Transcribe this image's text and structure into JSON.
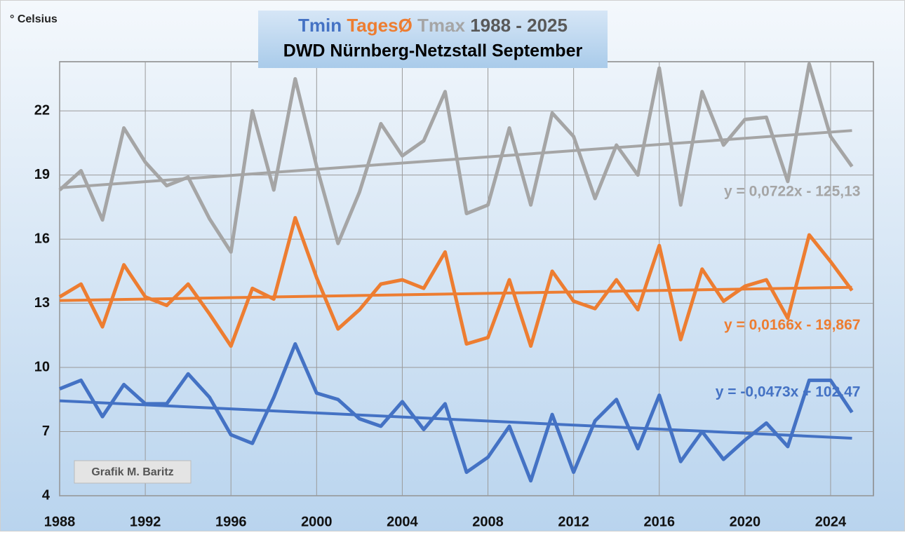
{
  "chart_data": {
    "type": "line",
    "title": "DWD Nürnberg-Netzstall September",
    "title_period": "1988 - 2025",
    "y_axis_label": "° Celsius",
    "annotation": "Grafik M. Baritz",
    "x": [
      1988,
      1989,
      1990,
      1991,
      1992,
      1993,
      1994,
      1995,
      1996,
      1997,
      1998,
      1999,
      2000,
      2001,
      2002,
      2003,
      2004,
      2005,
      2006,
      2007,
      2008,
      2009,
      2010,
      2011,
      2012,
      2013,
      2014,
      2015,
      2016,
      2017,
      2018,
      2019,
      2020,
      2021,
      2022,
      2023,
      2024,
      2025
    ],
    "series": [
      {
        "name": "Tmin",
        "color": "#4472c4",
        "values": [
          9.0,
          9.4,
          7.7,
          9.2,
          8.3,
          8.3,
          9.7,
          8.6,
          6.85,
          6.45,
          8.6,
          11.1,
          8.8,
          8.5,
          7.6,
          7.25,
          8.4,
          7.1,
          8.3,
          5.1,
          5.8,
          7.25,
          4.7,
          7.8,
          5.1,
          7.5,
          8.5,
          6.2,
          8.7,
          5.6,
          7.0,
          5.7,
          6.6,
          7.4,
          6.3,
          9.4,
          9.4,
          7.9
        ]
      },
      {
        "name": "TagesØ",
        "color": "#ed7d31",
        "values": [
          13.3,
          13.9,
          11.9,
          14.8,
          13.3,
          12.9,
          13.9,
          12.5,
          11.0,
          13.7,
          13.2,
          17.0,
          14.2,
          11.8,
          12.7,
          13.9,
          14.1,
          13.7,
          15.4,
          11.1,
          11.4,
          14.1,
          11.0,
          14.5,
          13.1,
          12.75,
          14.1,
          12.7,
          15.7,
          11.3,
          14.6,
          13.1,
          13.8,
          14.1,
          12.3,
          16.2,
          14.95,
          13.6
        ]
      },
      {
        "name": "Tmax",
        "color": "#a5a5a5",
        "values": [
          18.3,
          19.2,
          16.9,
          21.2,
          19.6,
          18.5,
          18.9,
          16.95,
          15.4,
          22.0,
          18.3,
          23.5,
          19.4,
          15.8,
          18.2,
          21.4,
          19.9,
          20.6,
          22.9,
          17.2,
          17.6,
          21.2,
          17.6,
          21.9,
          20.8,
          17.9,
          20.4,
          19.0,
          24.0,
          17.6,
          22.9,
          20.4,
          21.6,
          21.7,
          18.7,
          24.2,
          20.8,
          19.4
        ]
      }
    ],
    "trendlines": [
      {
        "color": "#4472c4",
        "x": [
          1988,
          2025
        ],
        "values": [
          8.44,
          6.69
        ],
        "label": "y = -0,0473x + 102,47"
      },
      {
        "color": "#ed7d31",
        "x": [
          1988,
          2025
        ],
        "values": [
          13.13,
          13.75
        ],
        "label": "y = 0,0166x - 19,867"
      },
      {
        "color": "#a5a5a5",
        "x": [
          1988,
          2025
        ],
        "values": [
          18.4,
          21.08
        ],
        "label": "y = 0,0722x - 125,13"
      }
    ],
    "xlim": [
      1988,
      2026
    ],
    "xticks": [
      1988,
      1992,
      1996,
      2000,
      2004,
      2008,
      2012,
      2016,
      2020,
      2024
    ],
    "ylim": [
      4,
      24.3
    ],
    "yticks": [
      4,
      7,
      10,
      13,
      16,
      19,
      22
    ],
    "grid": true
  }
}
